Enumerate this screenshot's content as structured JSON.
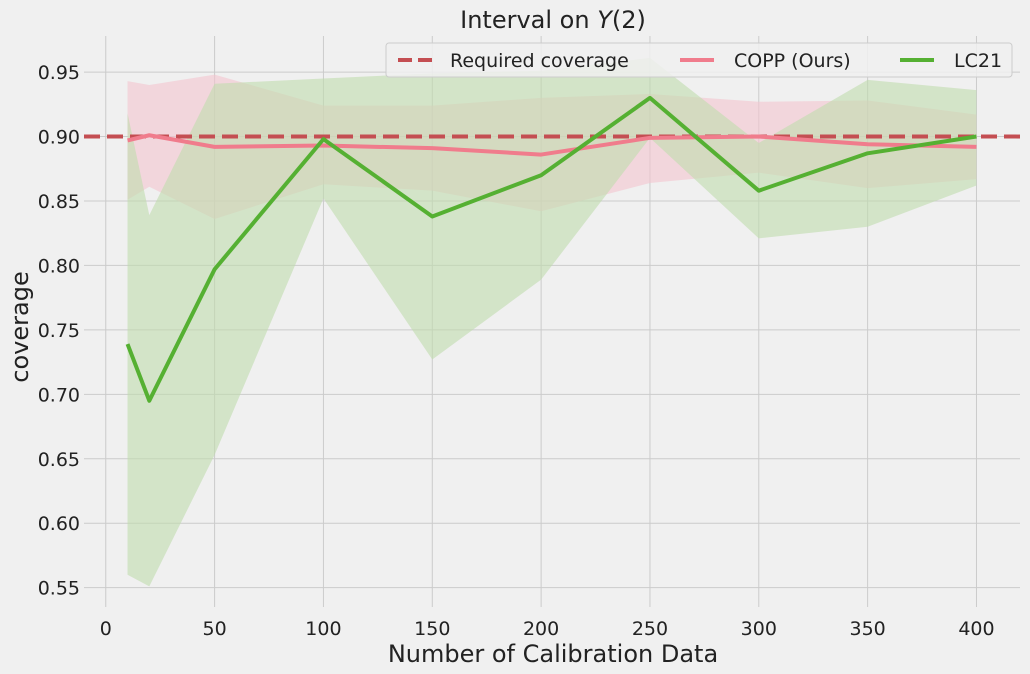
{
  "chart_data": {
    "type": "line",
    "title_prefix": "Interval on ",
    "title_var": "Y",
    "title_suffix": "(2)",
    "xlabel": "Number of Calibration Data",
    "ylabel": "coverage",
    "xlim": [
      -10,
      420
    ],
    "ylim": [
      0.535,
      0.978
    ],
    "xticks": [
      0,
      50,
      100,
      150,
      200,
      250,
      300,
      350,
      400
    ],
    "yticks": [
      0.55,
      0.6,
      0.65,
      0.7,
      0.75,
      0.8,
      0.85,
      0.9,
      0.95
    ],
    "grid": true,
    "legend_position": "top-right",
    "required_coverage": {
      "name": "Required coverage",
      "value": 0.9,
      "color": "#c44e52"
    },
    "series": [
      {
        "name": "COPP (Ours)",
        "color": "#f07c8c",
        "band_color": "#f4c5cf",
        "x": [
          10,
          20,
          50,
          100,
          150,
          200,
          250,
          300,
          350,
          400
        ],
        "values": [
          0.897,
          0.901,
          0.892,
          0.893,
          0.891,
          0.886,
          0.899,
          0.9,
          0.894,
          0.892
        ],
        "lower": [
          0.851,
          0.861,
          0.836,
          0.863,
          0.858,
          0.842,
          0.864,
          0.872,
          0.86,
          0.867
        ],
        "upper": [
          0.943,
          0.94,
          0.948,
          0.924,
          0.924,
          0.93,
          0.933,
          0.927,
          0.928,
          0.917
        ]
      },
      {
        "name": "LC21",
        "color": "#55b032",
        "band_color": "#bfdcae",
        "x": [
          10,
          20,
          50,
          100,
          150,
          200,
          250,
          300,
          350,
          400
        ],
        "values": [
          0.739,
          0.695,
          0.797,
          0.898,
          0.838,
          0.87,
          0.93,
          0.858,
          0.887,
          0.9
        ],
        "lower": [
          0.56,
          0.551,
          0.653,
          0.852,
          0.727,
          0.789,
          0.899,
          0.821,
          0.83,
          0.862
        ],
        "upper": [
          0.918,
          0.839,
          0.941,
          0.945,
          0.949,
          0.951,
          0.961,
          0.895,
          0.944,
          0.936
        ]
      }
    ]
  }
}
